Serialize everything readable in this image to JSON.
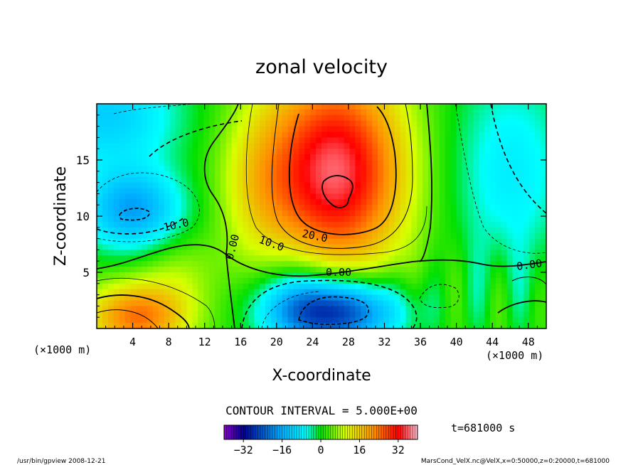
{
  "chart_data": {
    "type": "heatmap",
    "title": "zonal velocity",
    "xlabel": "X-coordinate",
    "ylabel": "Z-coordinate",
    "x_unit": "(×1000 m)",
    "y_unit": "(×1000 m)",
    "xlim": [
      0,
      50
    ],
    "ylim": [
      0,
      20
    ],
    "x_ticks": [
      4,
      8,
      12,
      16,
      20,
      24,
      28,
      32,
      36,
      40,
      44,
      48
    ],
    "y_ticks": [
      5,
      10,
      15
    ],
    "contour_interval_text": "CONTOUR INTERVAL = 5.000E+00",
    "contour_labels": [
      "10.0",
      "0.00",
      "10.0",
      "20.0",
      "0.00",
      "0.00"
    ],
    "colorbar": {
      "range": [
        -40,
        40
      ],
      "ticks": [
        -32,
        -16,
        0,
        16,
        32
      ],
      "tick_labels": [
        "−32",
        "−16",
        "0",
        "16",
        "32"
      ]
    },
    "features": [
      {
        "kind": "max",
        "x": 26,
        "z": 12.5,
        "value": 33
      },
      {
        "kind": "min",
        "x": 26.5,
        "z": 1.5,
        "value": -30
      },
      {
        "kind": "min",
        "x": 3.5,
        "z": 10.5,
        "value": -18
      },
      {
        "kind": "max",
        "x": 4,
        "z": 1,
        "value": 22
      }
    ]
  },
  "annotations": {
    "time": "t=681000 s",
    "footer_left": "/usr/bin/gpview  2008-12-21",
    "footer_right": "MarsCond_VelX.nc@VelX,x=0:50000,z=0:20000,t=681000"
  }
}
